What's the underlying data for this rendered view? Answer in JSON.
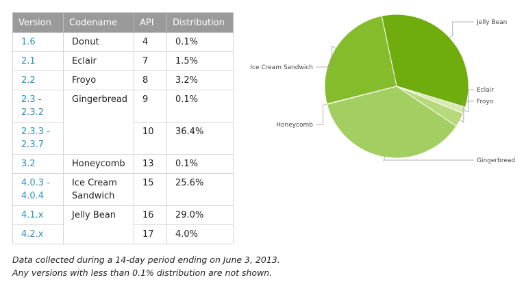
{
  "table": {
    "headers": [
      "Version",
      "Codename",
      "API",
      "Distribution"
    ],
    "rows": [
      {
        "version": "1.6",
        "codename": "Donut",
        "api": "4",
        "dist": "0.1%"
      },
      {
        "version": "2.1",
        "codename": "Eclair",
        "api": "7",
        "dist": "1.5%"
      },
      {
        "version": "2.2",
        "codename": "Froyo",
        "api": "8",
        "dist": "3.2%"
      },
      {
        "version": "2.3 -\n2.3.2",
        "codename": "Gingerbread",
        "api": "9",
        "dist": "0.1%"
      },
      {
        "version": "2.3.3 -\n2.3.7",
        "codename": "",
        "api": "10",
        "dist": "36.4%"
      },
      {
        "version": "3.2",
        "codename": "Honeycomb",
        "api": "13",
        "dist": "0.1%"
      },
      {
        "version": "4.0.3 -\n4.0.4",
        "codename": "Ice Cream\nSandwich",
        "api": "15",
        "dist": "25.6%"
      },
      {
        "version": "4.1.x",
        "codename": "Jelly Bean",
        "api": "16",
        "dist": "29.0%"
      },
      {
        "version": "4.2.x",
        "codename": "",
        "api": "17",
        "dist": "4.0%"
      }
    ]
  },
  "note": {
    "line1": "Data collected during a 14-day period ending on June 3, 2013.",
    "line2": "Any versions with less than 0.1% distribution are not shown."
  },
  "chart_data": {
    "type": "pie",
    "slices": [
      {
        "label": "Jelly Bean",
        "value": 33.0,
        "color": "#6fac0e"
      },
      {
        "label": "Eclair",
        "value": 1.5,
        "color": "#d6e9b0"
      },
      {
        "label": "Froyo",
        "value": 3.2,
        "color": "#b6d97c"
      },
      {
        "label": "Gingerbread",
        "value": 36.5,
        "color": "#a3cf62"
      },
      {
        "label": "Honeycomb",
        "value": 0.1,
        "color": "#8cc03a"
      },
      {
        "label": "Ice Cream Sandwich",
        "value": 25.6,
        "color": "#85bc2b"
      }
    ]
  }
}
